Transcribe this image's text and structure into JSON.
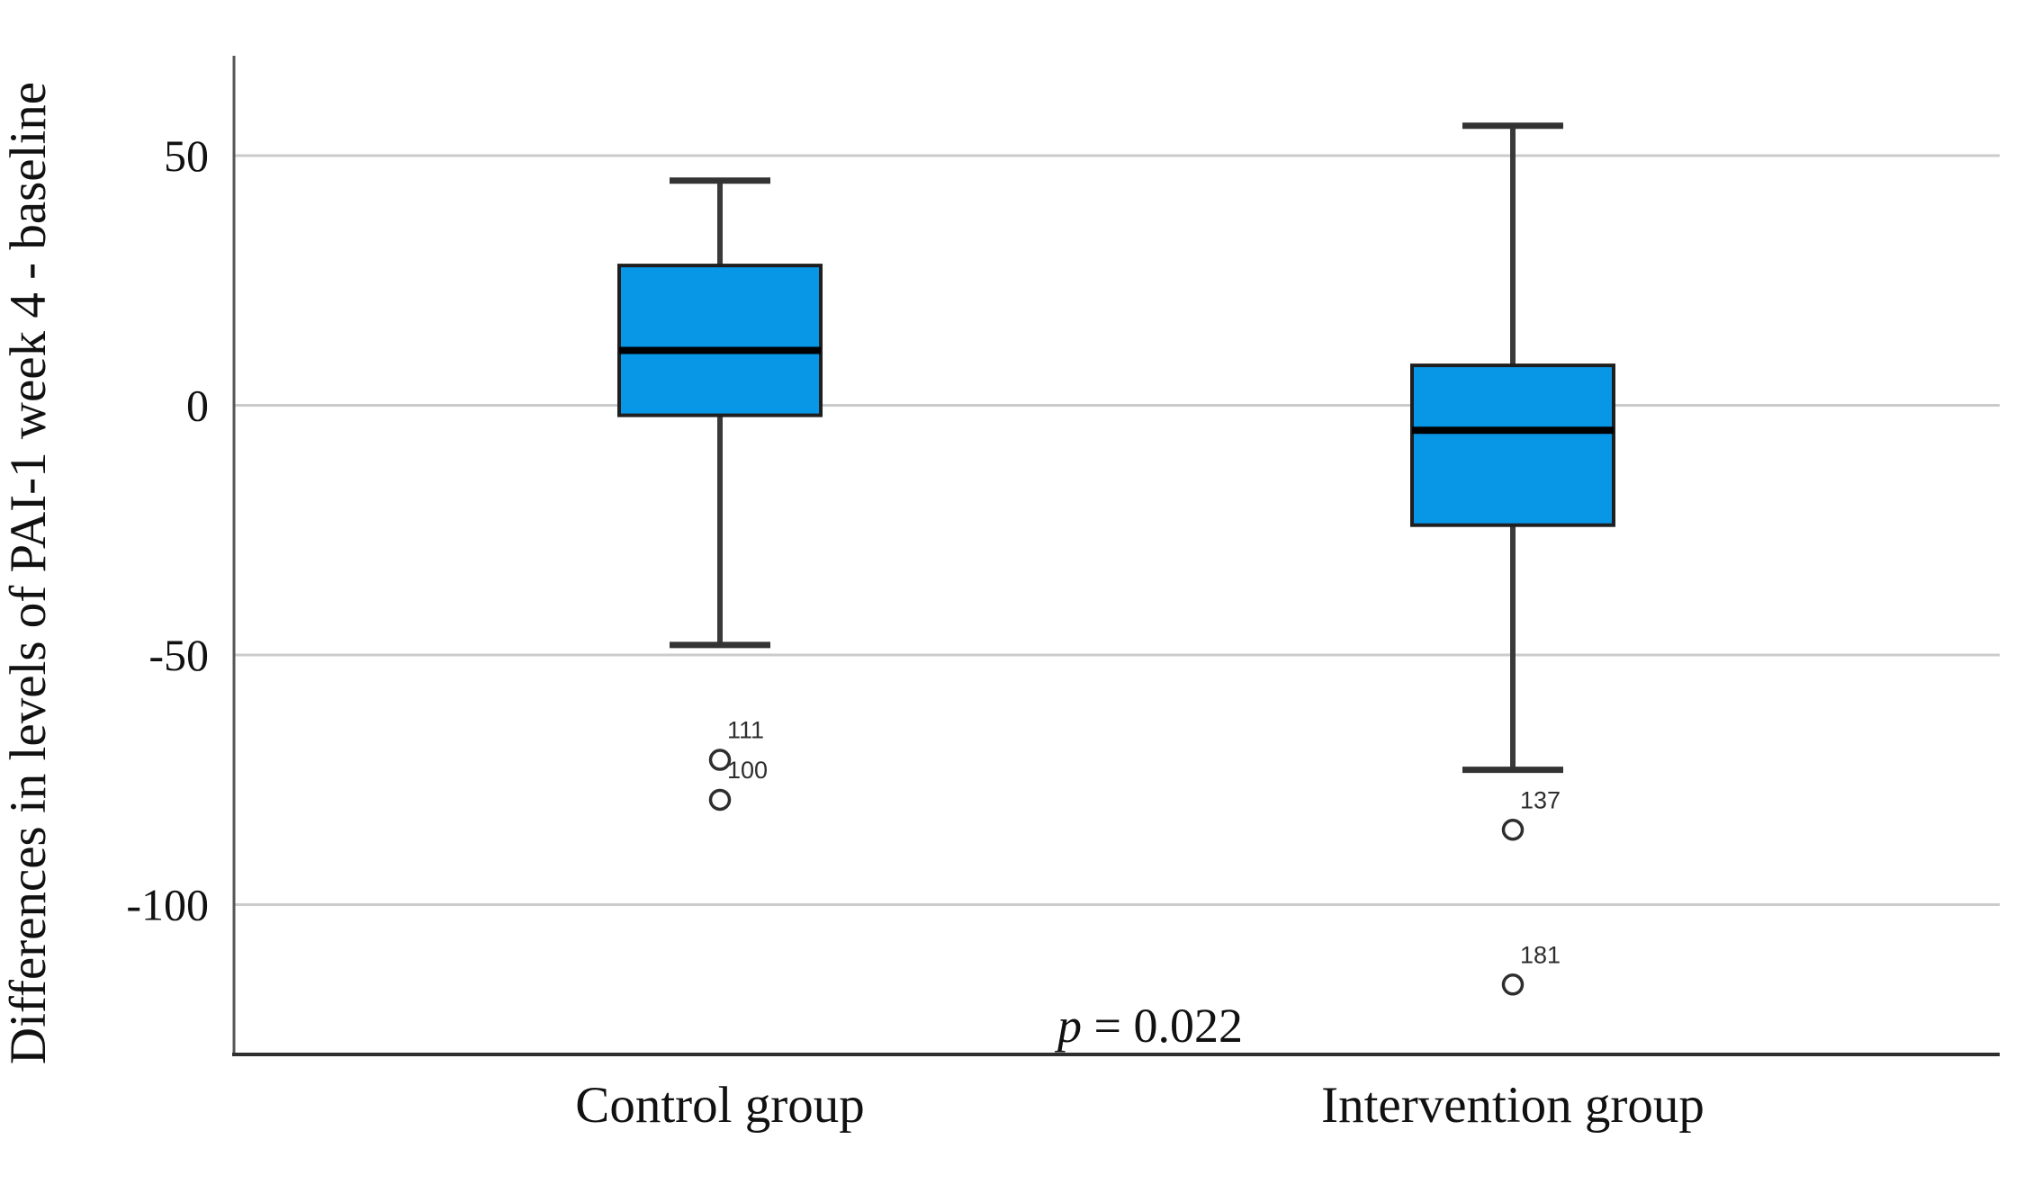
{
  "figure": {
    "ylabel": "Differences in levels of PAI-1 week 4 - baseline",
    "annotation_text": "p = 0.022"
  },
  "chart_data": {
    "type": "box",
    "title": "",
    "xlabel": "",
    "ylabel": "Differences in levels of PAI-1 week 4 - baseline",
    "categories": [
      "Control group",
      "Intervention group"
    ],
    "yticks": [
      50,
      0,
      -50,
      -100
    ],
    "ylim": [
      -130,
      70
    ],
    "grid": true,
    "annotation": {
      "text": "p = 0.022",
      "italic_prefix": "p",
      "rest": " = 0.022",
      "position": "bottom-center"
    },
    "series": [
      {
        "name": "Control group",
        "whisker_low": -48,
        "q1": -2,
        "median": 11,
        "q3": 28,
        "whisker_high": 45,
        "outliers": [
          {
            "value": -71,
            "label": "111"
          },
          {
            "value": -79,
            "label": "100"
          }
        ]
      },
      {
        "name": "Intervention group",
        "whisker_low": -73,
        "q1": -24,
        "median": -5,
        "q3": 8,
        "whisker_high": 56,
        "outliers": [
          {
            "value": -85,
            "label": "137"
          },
          {
            "value": -116,
            "label": "181"
          }
        ]
      }
    ],
    "colors": {
      "box_fill": "#0897e7",
      "box_border": "#1f1f1f",
      "median": "#000000",
      "whisker": "#3a3a3a",
      "whisker_cap": "#333333",
      "outlier_stroke": "#2e2e2e",
      "gridline": "#cbcbcb",
      "axis_left": "#555555",
      "axis_bottom": "#2e2e2e",
      "text": "#111111"
    }
  }
}
